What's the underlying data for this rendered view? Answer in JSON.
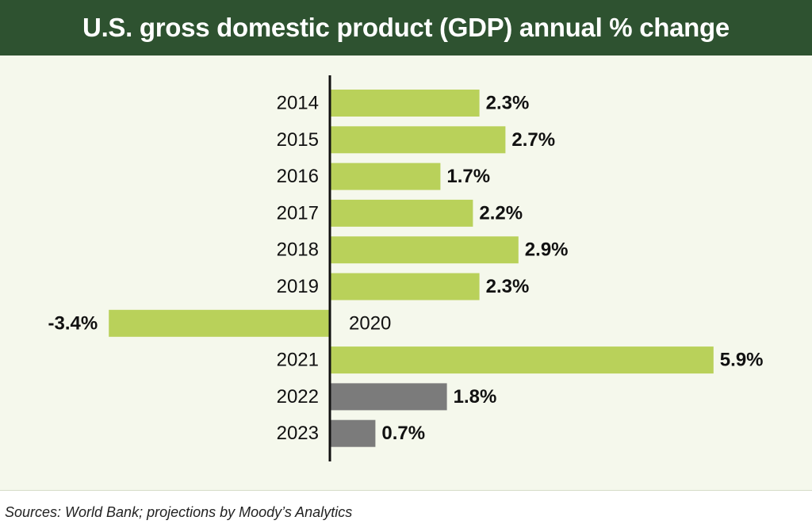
{
  "header": {
    "title": "U.S. gross domestic product (GDP) annual % change"
  },
  "footer": {
    "source": "Sources: World Bank; projections by Moody’s Analytics"
  },
  "colors": {
    "header_bg": "#2e5230",
    "panel_bg": "#f5f8ec",
    "actual": "#b9d15a",
    "projection": "#7b7b7b",
    "axis": "#111111"
  },
  "chart_data": {
    "type": "bar",
    "orientation": "horizontal",
    "title": "U.S. gross domestic product (GDP) annual % change",
    "categories": [
      "2014",
      "2015",
      "2016",
      "2017",
      "2018",
      "2019",
      "2020",
      "2021",
      "2022",
      "2023"
    ],
    "values": [
      2.3,
      2.7,
      1.7,
      2.2,
      2.9,
      2.3,
      -3.4,
      5.9,
      1.8,
      0.7
    ],
    "labels": [
      "2.3%",
      "2.7%",
      "1.7%",
      "2.2%",
      "2.9%",
      "2.3%",
      "-3.4%",
      "5.9%",
      "1.8%",
      "0.7%"
    ],
    "series_type": [
      "actual",
      "actual",
      "actual",
      "actual",
      "actual",
      "actual",
      "actual",
      "actual",
      "projection",
      "projection"
    ],
    "xlabel": "",
    "ylabel": "",
    "xlim": [
      -3.4,
      5.9
    ],
    "grid": false,
    "legend": "none"
  }
}
